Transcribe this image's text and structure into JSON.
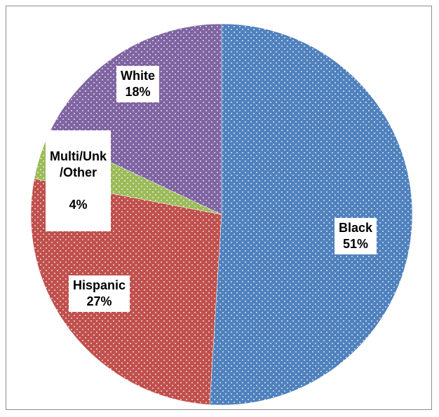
{
  "chart_data": {
    "type": "pie",
    "slices": [
      {
        "label": "Black",
        "value": 51,
        "display": "51%",
        "color": "#4f81bd"
      },
      {
        "label": "Hispanic",
        "value": 27,
        "display": "27%",
        "color": "#c0504d"
      },
      {
        "label": "Multi/Unk\n/Other",
        "value": 4,
        "display": "4%",
        "color": "#9bbb59"
      },
      {
        "label": "White",
        "value": 18,
        "display": "18%",
        "color": "#8064a2"
      }
    ],
    "start_angle_deg": 0,
    "direction": "clockwise",
    "fill_pattern": "dotted",
    "legend": "none"
  }
}
